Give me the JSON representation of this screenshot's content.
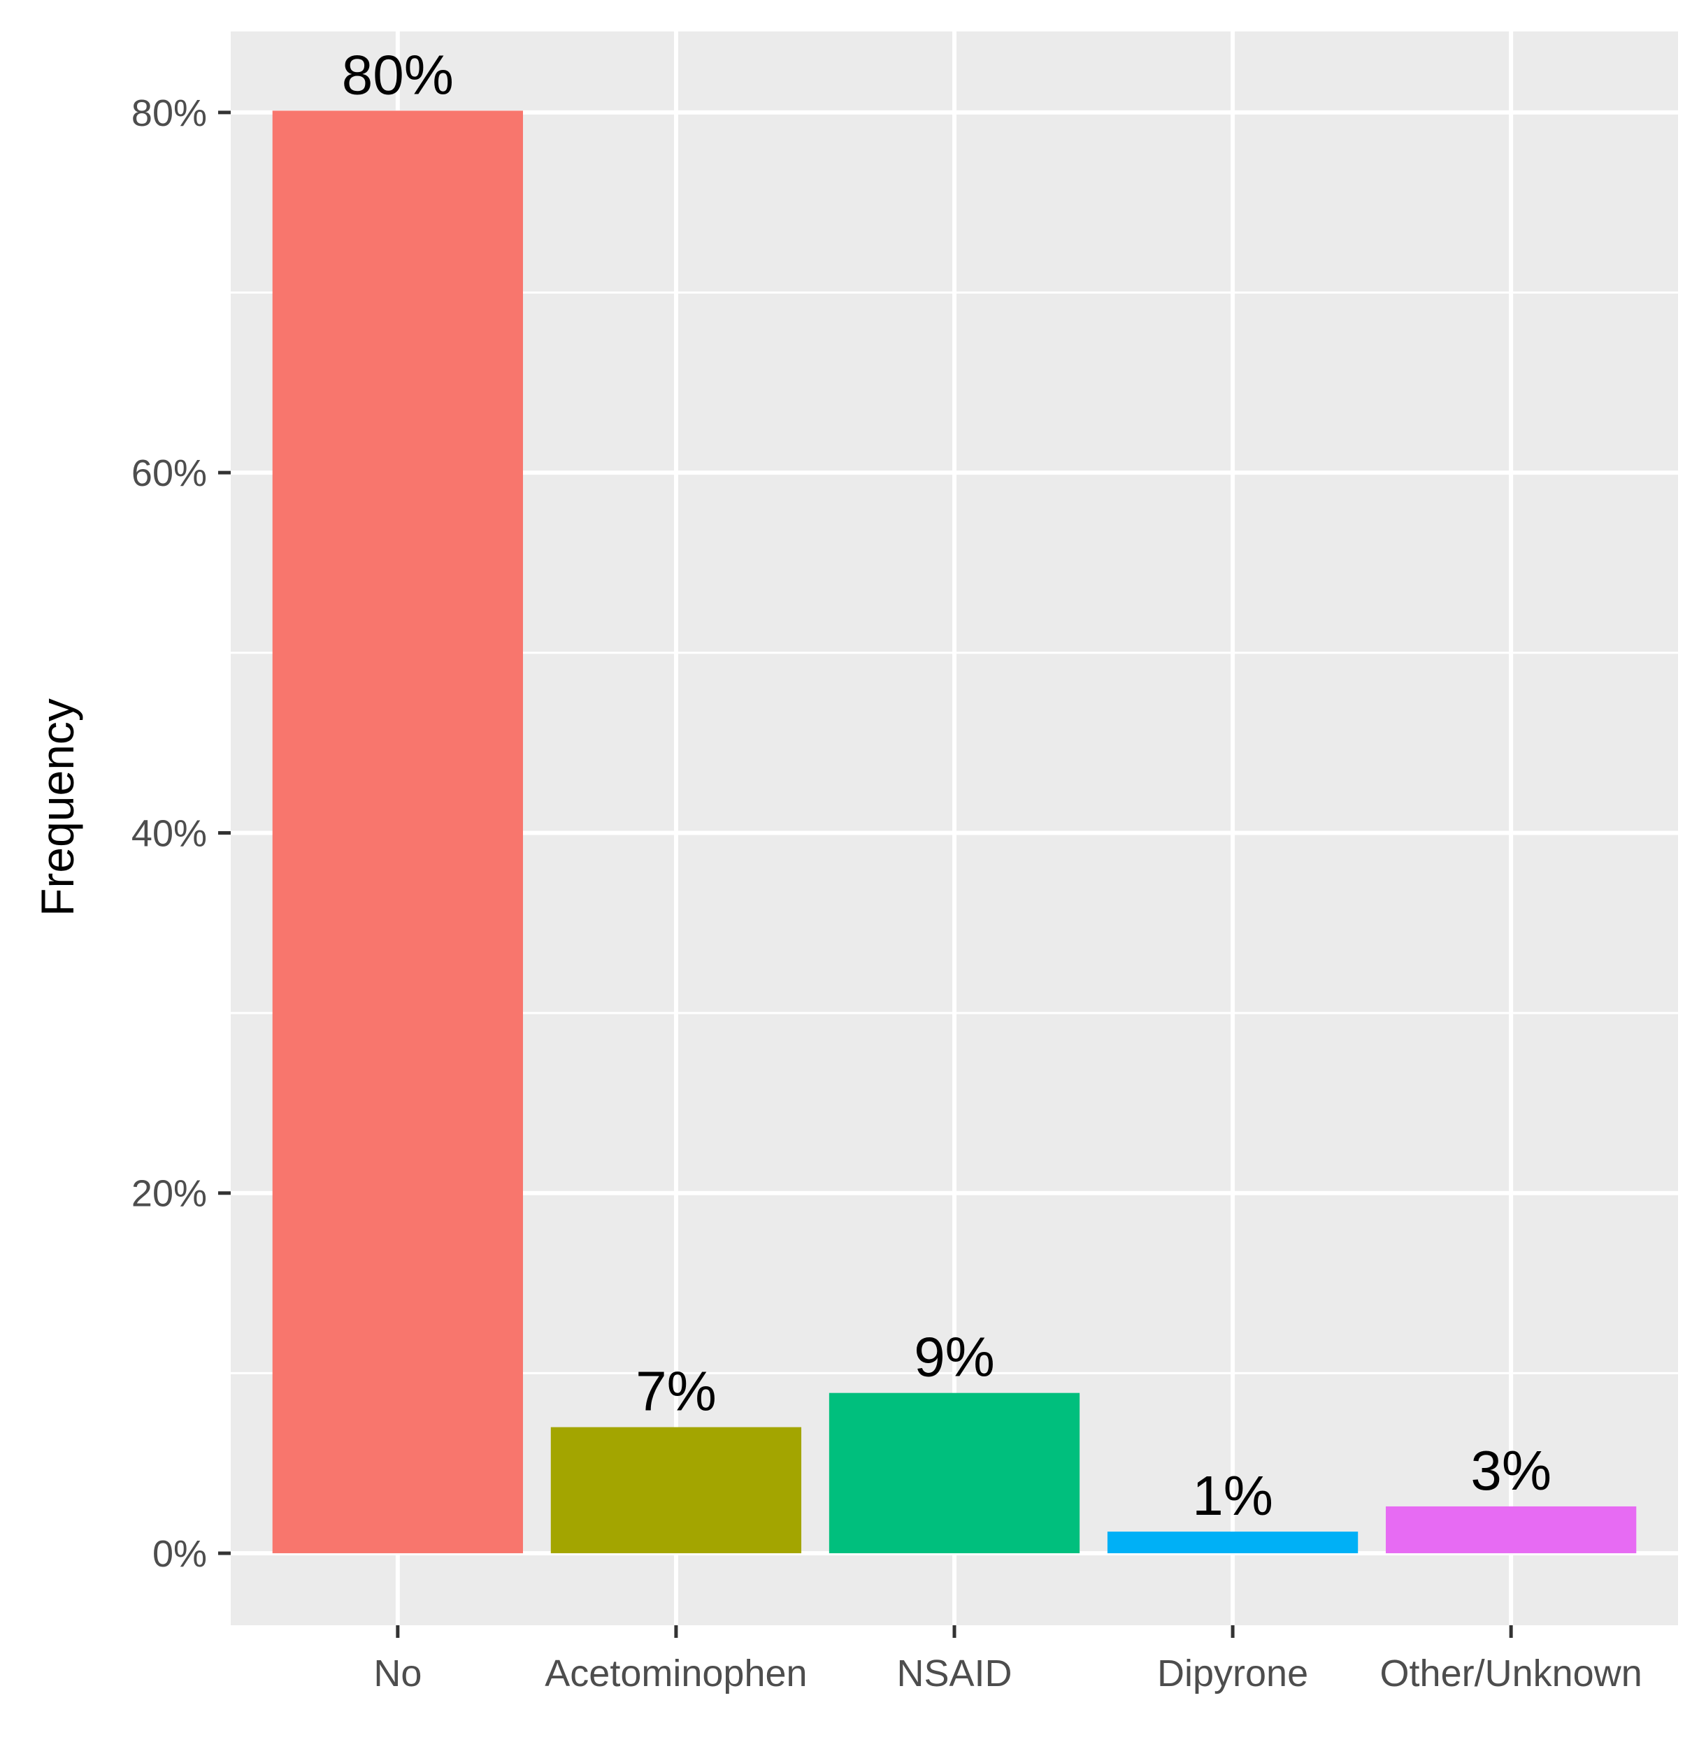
{
  "chart_data": {
    "type": "bar",
    "categories": [
      "No",
      "Acetominophen",
      "NSAID",
      "Dipyrone",
      "Other/Unknown"
    ],
    "values": [
      80.1,
      7,
      8.9,
      1.2,
      2.6
    ],
    "data_labels": [
      "80%",
      "7%",
      "9%",
      "1%",
      "3%"
    ],
    "colors": [
      "#F8766D",
      "#A3A500",
      "#00BF7D",
      "#00B0F6",
      "#E76BF3"
    ],
    "ylabel": "Frequency",
    "xlabel": "",
    "ylim": [
      -4,
      84.5
    ],
    "y_ticks": [
      0,
      20,
      40,
      60,
      80
    ],
    "y_tick_labels": [
      "0%",
      "20%",
      "40%",
      "60%",
      "80%"
    ],
    "y_minor_ticks": [
      10,
      30,
      50,
      70
    ],
    "grid": true,
    "legend": "none",
    "panel_background": "#EBEBEB",
    "grid_color": "#FFFFFF"
  }
}
